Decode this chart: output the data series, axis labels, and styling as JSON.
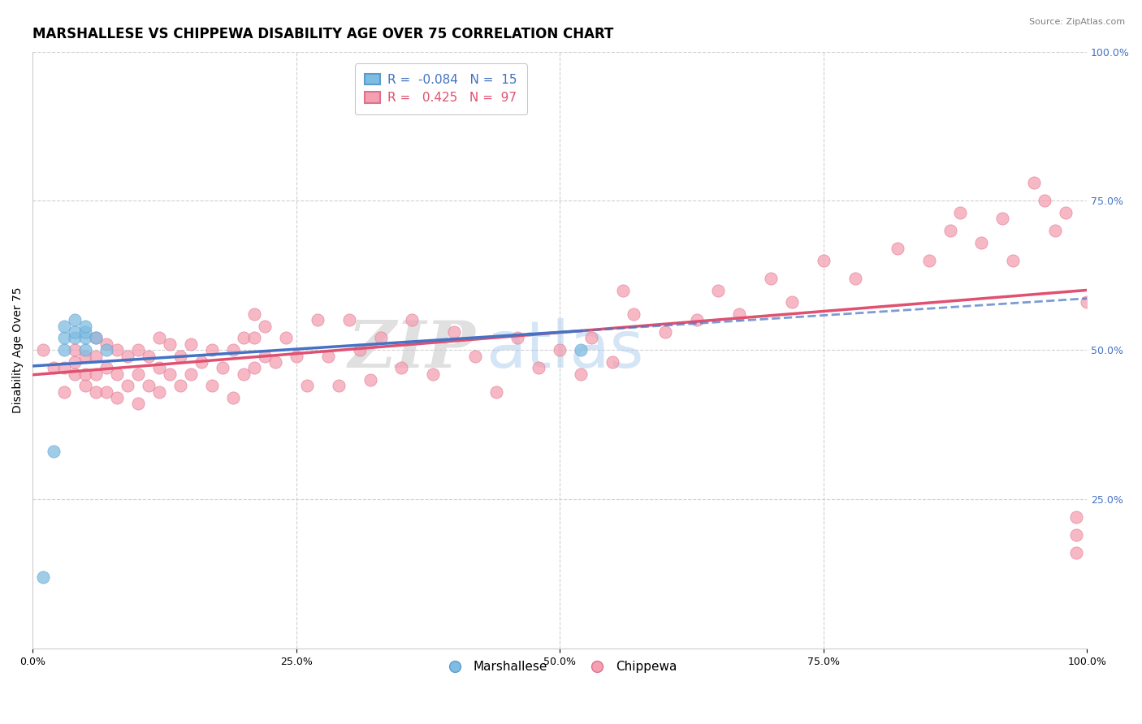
{
  "title": "MARSHALLESE VS CHIPPEWA DISABILITY AGE OVER 75 CORRELATION CHART",
  "source_text": "Source: ZipAtlas.com",
  "ylabel": "Disability Age Over 75",
  "xlim": [
    0.0,
    1.0
  ],
  "ylim": [
    0.0,
    1.0
  ],
  "xticks": [
    0.0,
    0.25,
    0.5,
    0.75,
    1.0
  ],
  "yticks_right": [
    0.25,
    0.5,
    0.75,
    1.0
  ],
  "background_color": "#ffffff",
  "grid_color": "#d0d0d0",
  "marshallese_x": [
    0.01,
    0.02,
    0.03,
    0.03,
    0.03,
    0.04,
    0.04,
    0.04,
    0.05,
    0.05,
    0.05,
    0.05,
    0.06,
    0.07,
    0.52
  ],
  "marshallese_y": [
    0.12,
    0.33,
    0.5,
    0.52,
    0.54,
    0.52,
    0.53,
    0.55,
    0.5,
    0.52,
    0.53,
    0.54,
    0.52,
    0.5,
    0.5
  ],
  "chippewa_x": [
    0.01,
    0.02,
    0.03,
    0.03,
    0.04,
    0.04,
    0.04,
    0.05,
    0.05,
    0.05,
    0.06,
    0.06,
    0.06,
    0.06,
    0.07,
    0.07,
    0.07,
    0.08,
    0.08,
    0.08,
    0.09,
    0.09,
    0.1,
    0.1,
    0.1,
    0.11,
    0.11,
    0.12,
    0.12,
    0.12,
    0.13,
    0.13,
    0.14,
    0.14,
    0.15,
    0.15,
    0.16,
    0.17,
    0.17,
    0.18,
    0.19,
    0.19,
    0.2,
    0.2,
    0.21,
    0.21,
    0.21,
    0.22,
    0.22,
    0.23,
    0.24,
    0.25,
    0.26,
    0.27,
    0.28,
    0.29,
    0.3,
    0.31,
    0.32,
    0.33,
    0.35,
    0.36,
    0.38,
    0.4,
    0.42,
    0.44,
    0.46,
    0.48,
    0.5,
    0.52,
    0.53,
    0.55,
    0.57,
    0.6,
    0.63,
    0.65,
    0.67,
    0.7,
    0.72,
    0.75,
    0.78,
    0.82,
    0.85,
    0.87,
    0.88,
    0.9,
    0.92,
    0.93,
    0.95,
    0.96,
    0.97,
    0.98,
    0.99,
    0.99,
    0.99,
    1.0,
    0.56
  ],
  "chippewa_y": [
    0.5,
    0.47,
    0.43,
    0.47,
    0.46,
    0.48,
    0.5,
    0.44,
    0.46,
    0.49,
    0.43,
    0.46,
    0.49,
    0.52,
    0.43,
    0.47,
    0.51,
    0.42,
    0.46,
    0.5,
    0.44,
    0.49,
    0.41,
    0.46,
    0.5,
    0.44,
    0.49,
    0.43,
    0.47,
    0.52,
    0.46,
    0.51,
    0.44,
    0.49,
    0.46,
    0.51,
    0.48,
    0.44,
    0.5,
    0.47,
    0.42,
    0.5,
    0.46,
    0.52,
    0.47,
    0.52,
    0.56,
    0.49,
    0.54,
    0.48,
    0.52,
    0.49,
    0.44,
    0.55,
    0.49,
    0.44,
    0.55,
    0.5,
    0.45,
    0.52,
    0.47,
    0.55,
    0.46,
    0.53,
    0.49,
    0.43,
    0.52,
    0.47,
    0.5,
    0.46,
    0.52,
    0.48,
    0.56,
    0.53,
    0.55,
    0.6,
    0.56,
    0.62,
    0.58,
    0.65,
    0.62,
    0.67,
    0.65,
    0.7,
    0.73,
    0.68,
    0.72,
    0.65,
    0.78,
    0.75,
    0.7,
    0.73,
    0.16,
    0.19,
    0.22,
    0.58,
    0.6
  ],
  "marshallese_color": "#7fbde0",
  "marshallese_edge_color": "#5b9bd5",
  "chippewa_color": "#f4a0b0",
  "chippewa_edge_color": "#e07090",
  "marshallese_line_color": "#4472c4",
  "chippewa_line_color": "#e05070",
  "title_fontsize": 12,
  "axis_label_fontsize": 10,
  "tick_fontsize": 9,
  "legend_R_label_blue": "R =  -0.084",
  "legend_N_label_blue": "N =  15",
  "legend_R_label_pink": "R =   0.425",
  "legend_N_label_pink": "N =  97",
  "blue_text_color": "#4472c4",
  "pink_text_color": "#e05070",
  "source_color": "#808080",
  "watermark_zip": "ZIP",
  "watermark_atlas": "atlas"
}
